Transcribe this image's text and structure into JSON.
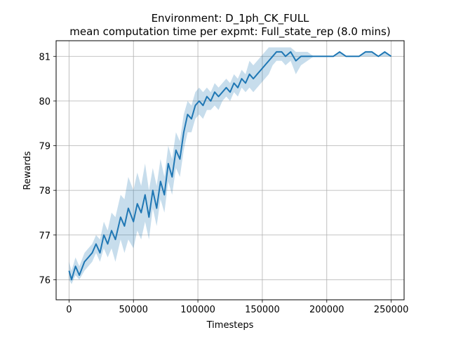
{
  "chart_data": {
    "type": "line",
    "title": "Environment: D_1ph_CK_FULL",
    "subtitle": "mean computation time per expmt: Full_state_rep (8.0 mins)",
    "xlabel": "Timesteps",
    "ylabel": "Rewards",
    "xlim": [
      -10000,
      260000
    ],
    "ylim": [
      75.55,
      81.35
    ],
    "xticks": [
      0,
      50000,
      100000,
      150000,
      200000,
      250000
    ],
    "xtick_labels": [
      "0",
      "50000",
      "100000",
      "150000",
      "200000",
      "250000"
    ],
    "yticks": [
      76,
      77,
      78,
      79,
      80,
      81
    ],
    "ytick_labels": [
      "76",
      "77",
      "78",
      "79",
      "80",
      "81"
    ],
    "grid": true,
    "colors": {
      "line": "#1f77b4",
      "band": "#1f77b4",
      "grid": "#b0b0b0"
    },
    "series": [
      {
        "x": [
          0,
          2000,
          5000,
          8000,
          12000,
          15000,
          18000,
          21000,
          24000,
          27000,
          30000,
          33000,
          36000,
          40000,
          43000,
          46000,
          50000,
          53000,
          56000,
          59000,
          62000,
          65000,
          68000,
          71000,
          74000,
          77000,
          80000,
          83000,
          86000,
          89000,
          92000,
          95000,
          98000,
          101000,
          104000,
          107000,
          110000,
          113000,
          116000,
          119000,
          122000,
          125000,
          128000,
          131000,
          134000,
          137000,
          140000,
          143000,
          146000,
          149000,
          152000,
          155000,
          158000,
          161000,
          165000,
          168000,
          172000,
          176000,
          180000,
          185000,
          190000,
          195000,
          200000,
          205000,
          210000,
          215000,
          220000,
          225000,
          230000,
          235000,
          240000,
          245000,
          250000
        ],
        "y": [
          76.2,
          76.0,
          76.3,
          76.1,
          76.4,
          76.5,
          76.6,
          76.8,
          76.6,
          77.0,
          76.8,
          77.1,
          76.9,
          77.4,
          77.2,
          77.6,
          77.3,
          77.7,
          77.5,
          77.9,
          77.4,
          78.0,
          77.6,
          78.2,
          77.9,
          78.6,
          78.3,
          78.9,
          78.7,
          79.3,
          79.7,
          79.6,
          79.9,
          80.0,
          79.9,
          80.1,
          80.0,
          80.2,
          80.1,
          80.2,
          80.3,
          80.2,
          80.4,
          80.3,
          80.5,
          80.4,
          80.6,
          80.5,
          80.6,
          80.7,
          80.8,
          80.9,
          81.0,
          81.1,
          81.1,
          81.0,
          81.1,
          80.9,
          81.0,
          81.0,
          81.0,
          81.0,
          81.0,
          81.0,
          81.1,
          81.0,
          81.0,
          81.0,
          81.1,
          81.1,
          81.0,
          81.1,
          81.0
        ],
        "lower": [
          76.0,
          75.9,
          76.1,
          76.0,
          76.2,
          76.3,
          76.4,
          76.6,
          76.4,
          76.7,
          76.5,
          76.7,
          76.4,
          76.9,
          76.6,
          76.9,
          76.7,
          77.1,
          76.9,
          77.3,
          76.9,
          77.6,
          77.2,
          77.8,
          77.5,
          78.2,
          77.9,
          78.5,
          78.3,
          78.9,
          79.3,
          79.3,
          79.6,
          79.7,
          79.6,
          79.8,
          79.8,
          79.9,
          79.8,
          80.0,
          80.1,
          80.0,
          80.2,
          80.1,
          80.3,
          80.2,
          80.3,
          80.2,
          80.3,
          80.4,
          80.5,
          80.6,
          80.8,
          80.9,
          80.9,
          80.8,
          80.9,
          80.6,
          80.8,
          80.9,
          81.0,
          81.0,
          81.0,
          81.0,
          81.0,
          81.0,
          81.0,
          81.0,
          81.0,
          81.0,
          81.0,
          81.0,
          81.0
        ],
        "upper": [
          76.4,
          76.2,
          76.5,
          76.3,
          76.6,
          76.7,
          76.8,
          77.0,
          76.9,
          77.3,
          77.1,
          77.5,
          77.4,
          77.9,
          77.8,
          78.3,
          78.0,
          78.4,
          78.1,
          78.6,
          78.0,
          78.5,
          78.1,
          78.7,
          78.3,
          79.0,
          78.7,
          79.3,
          79.1,
          79.7,
          80.0,
          79.9,
          80.2,
          80.3,
          80.2,
          80.3,
          80.2,
          80.4,
          80.3,
          80.4,
          80.5,
          80.4,
          80.6,
          80.5,
          80.7,
          80.6,
          80.9,
          80.8,
          80.9,
          81.0,
          81.1,
          81.2,
          81.2,
          81.2,
          81.2,
          81.2,
          81.2,
          81.1,
          81.1,
          81.1,
          81.0,
          81.0,
          81.0,
          81.0,
          81.1,
          81.0,
          81.0,
          81.0,
          81.1,
          81.1,
          81.0,
          81.1,
          81.0
        ]
      }
    ]
  }
}
